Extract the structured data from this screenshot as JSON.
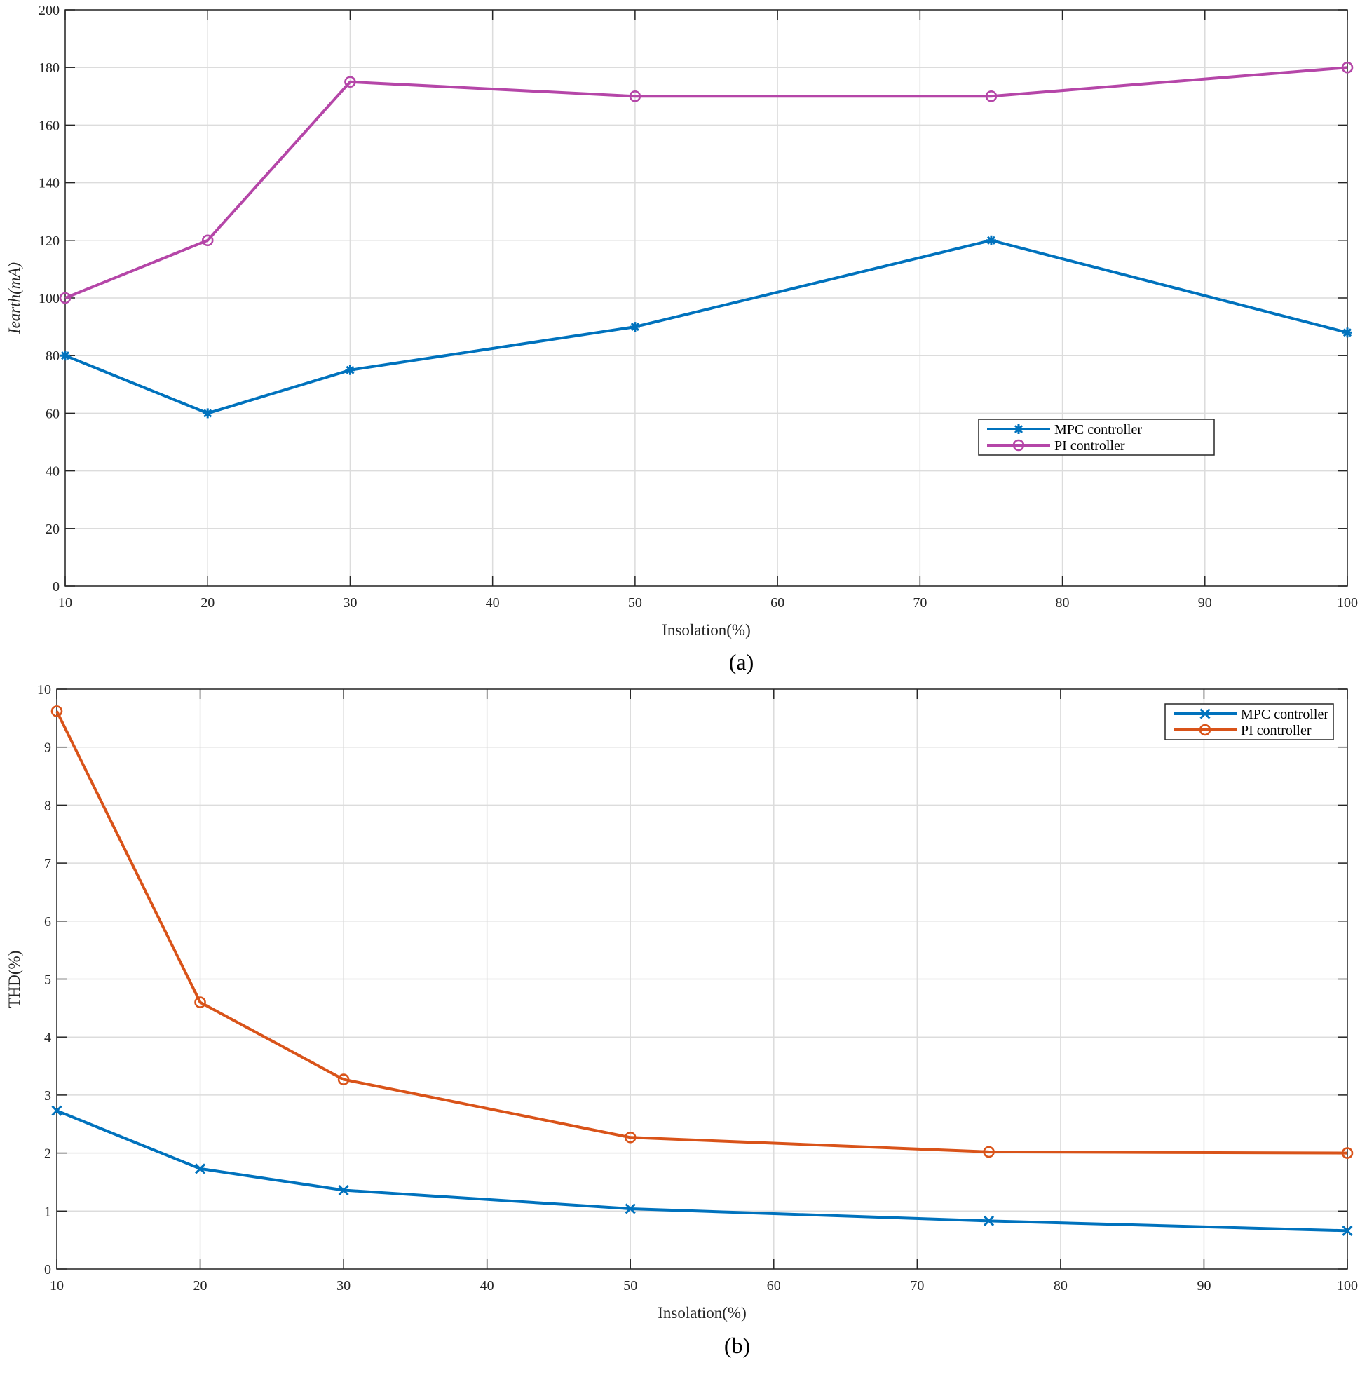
{
  "colors": {
    "mpc": "#0072bd",
    "pi_a": "#b546a8",
    "pi_b": "#d95319",
    "axis": "#262626",
    "grid": "#dcdcdc"
  },
  "chart_data": [
    {
      "id": "a",
      "type": "line",
      "caption": "(a)",
      "xlabel": "Insolation(%)",
      "ylabel": "Iearth(mA)",
      "xlim": [
        10,
        100
      ],
      "ylim": [
        0,
        200
      ],
      "xticks": [
        10,
        20,
        30,
        40,
        50,
        60,
        70,
        80,
        90,
        100
      ],
      "yticks": [
        0,
        20,
        40,
        60,
        80,
        100,
        120,
        140,
        160,
        180,
        200
      ],
      "grid": true,
      "legend_position": "center-right",
      "series": [
        {
          "name": "MPC controller",
          "color_key": "mpc",
          "marker": "asterisk",
          "x": [
            10,
            20,
            30,
            50,
            75,
            100
          ],
          "y": [
            80,
            60,
            75,
            90,
            120,
            88
          ]
        },
        {
          "name": "PI controller",
          "color_key": "pi_a",
          "marker": "circle",
          "x": [
            10,
            20,
            30,
            50,
            75,
            100
          ],
          "y": [
            100,
            120,
            175,
            170,
            170,
            180
          ]
        }
      ]
    },
    {
      "id": "b",
      "type": "line",
      "caption": "(b)",
      "xlabel": "Insolation(%)",
      "ylabel": "THD(%)",
      "xlim": [
        10,
        100
      ],
      "ylim": [
        0,
        10
      ],
      "xticks": [
        10,
        20,
        30,
        40,
        50,
        60,
        70,
        80,
        90,
        100
      ],
      "yticks": [
        0,
        1,
        2,
        3,
        4,
        5,
        6,
        7,
        8,
        9,
        10
      ],
      "grid": true,
      "legend_position": "top-right",
      "series": [
        {
          "name": "MPC controller",
          "color_key": "mpc",
          "marker": "x",
          "x": [
            10,
            20,
            30,
            50,
            75,
            100
          ],
          "y": [
            2.73,
            1.73,
            1.36,
            1.04,
            0.83,
            0.66
          ]
        },
        {
          "name": "PI controller",
          "color_key": "pi_b",
          "marker": "circle",
          "x": [
            10,
            20,
            30,
            50,
            75,
            100
          ],
          "y": [
            9.62,
            4.6,
            3.27,
            2.27,
            2.02,
            2.0
          ]
        }
      ]
    }
  ]
}
